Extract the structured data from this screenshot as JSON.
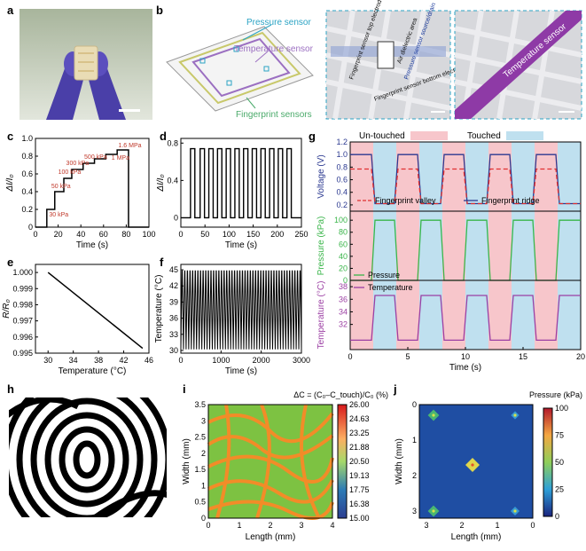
{
  "panels": {
    "a": "a",
    "b": "b",
    "c": "c",
    "d": "d",
    "e": "e",
    "f": "f",
    "g": "g",
    "h": "h",
    "i": "i",
    "j": "j"
  },
  "panel_b": {
    "pressure_sensor": "Pressure sensor",
    "temperature_sensor": "Temperature sensor",
    "fingerprint_sensors": "Fingerprint sensors",
    "fp_top_electrode": "Fingerprint sensor top electrode",
    "air_dielectric": "Air dielectric area",
    "pressure_source_drain": "Pressure sensor source/drain",
    "fp_bottom_electrode": "Fingerprint sensor bottom electrode",
    "temp_sensor_zoom": "Temperature sensor"
  },
  "chart_data": [
    {
      "id": "c",
      "type": "line",
      "xlabel": "Time (s)",
      "ylabel": "ΔI/I₀",
      "xlim": [
        0,
        100
      ],
      "ylim": [
        0,
        1.0
      ],
      "xticks": [
        "0",
        "20",
        "40",
        "60",
        "80",
        "100"
      ],
      "yticks": [
        "0",
        "0.2",
        "0.4",
        "0.6",
        "0.8",
        "1.0"
      ],
      "x": [
        0,
        10,
        10,
        17,
        17,
        25,
        25,
        32,
        32,
        42,
        42,
        52,
        52,
        62,
        62,
        72,
        72,
        82,
        82,
        100
      ],
      "y": [
        0,
        0,
        0.2,
        0.2,
        0.4,
        0.4,
        0.55,
        0.55,
        0.65,
        0.65,
        0.72,
        0.72,
        0.77,
        0.77,
        0.82,
        0.82,
        0.87,
        0.87,
        0,
        0
      ],
      "annotations": [
        {
          "text": "30 kPa",
          "x": 12,
          "y": 0.12
        },
        {
          "text": "50 kPa",
          "x": 14,
          "y": 0.44
        },
        {
          "text": "100 kPa",
          "x": 20,
          "y": 0.6
        },
        {
          "text": "300 kPa",
          "x": 27,
          "y": 0.7
        },
        {
          "text": "500 kPa",
          "x": 43,
          "y": 0.77
        },
        {
          "text": "1 MPa",
          "x": 67,
          "y": 0.76
        },
        {
          "text": "1.6 MPa",
          "x": 73,
          "y": 0.9
        }
      ]
    },
    {
      "id": "d",
      "type": "line",
      "xlabel": "Time (s)",
      "ylabel": "ΔI/I₀",
      "xlim": [
        0,
        250
      ],
      "ylim": [
        -0.1,
        0.85
      ],
      "xticks": [
        "0",
        "50",
        "100",
        "150",
        "200",
        "250"
      ],
      "yticks": [
        "0",
        "0.4",
        "0.8"
      ],
      "pulse_starts": [
        20,
        40,
        58,
        76,
        94,
        112,
        130,
        148,
        166,
        184,
        202,
        220
      ],
      "pulse_width": 9,
      "high": 0.74,
      "low": 0
    },
    {
      "id": "e",
      "type": "line",
      "xlabel": "Temperature (°C)",
      "ylabel": "R/R₀",
      "xlim": [
        28,
        46
      ],
      "ylim": [
        0.995,
        1.0005
      ],
      "xticks": [
        "30",
        "34",
        "38",
        "42",
        "46"
      ],
      "yticks": [
        "0.995",
        "0.996",
        "0.997",
        "0.998",
        "0.999",
        "1.000"
      ],
      "x": [
        30,
        45
      ],
      "y": [
        1.0,
        0.9953
      ]
    },
    {
      "id": "f",
      "type": "line",
      "xlabel": "Time (s)",
      "ylabel": "Temperature (°C)",
      "xlim": [
        0,
        3000
      ],
      "ylim": [
        29.5,
        46
      ],
      "xticks": [
        "0",
        "1000",
        "2000",
        "3000"
      ],
      "yticks": [
        "30",
        "33",
        "36",
        "39",
        "42",
        "45"
      ],
      "cycles": 46,
      "high": 44.8,
      "low": 30.2
    },
    {
      "id": "g",
      "type": "line",
      "xlabel": "Time (s)",
      "xlim": [
        0,
        20
      ],
      "xticks": [
        "0",
        "5",
        "10",
        "15",
        "20"
      ],
      "legend_top": {
        "untouched": "Un-touched",
        "touched": "Touched"
      },
      "touched_spans": [
        [
          2,
          4
        ],
        [
          6,
          8
        ],
        [
          10,
          12
        ],
        [
          14,
          16
        ],
        [
          18,
          20
        ]
      ],
      "untouched_spans": [
        [
          0,
          2
        ],
        [
          4,
          6
        ],
        [
          8,
          10
        ],
        [
          12,
          14
        ],
        [
          16,
          18
        ]
      ],
      "colors": {
        "untouched": "#f7c6cb",
        "touched": "#bfe0ef",
        "valley": "#e03030",
        "ridge": "#2b3990",
        "pressure": "#3ab54a",
        "temperature": "#9b3fa3"
      },
      "voltage": {
        "ylabel": "Voltage (V)",
        "ylim": [
          0.1,
          1.2
        ],
        "yticks": [
          "0.2",
          "0.4",
          "0.6",
          "0.8",
          "1.0",
          "1.2"
        ],
        "valley_name": "Fingerprint valley",
        "ridge_name": "Fingerprint ridge",
        "valley_high": 0.77,
        "ridge_high": 1.0,
        "low": 0.22
      },
      "pressure": {
        "ylabel": "Pressure (kPa)",
        "ylim": [
          0,
          115
        ],
        "yticks": [
          "0",
          "20",
          "40",
          "60",
          "80",
          "100"
        ],
        "name": "Pressure",
        "high": 100,
        "low": 0
      },
      "temperature": {
        "ylabel": "Temperature (°C)",
        "ylim": [
          28,
          39
        ],
        "yticks": [
          "32",
          "34",
          "36",
          "38"
        ],
        "name": "Temperature",
        "high": 36.6,
        "low": 29.5
      }
    },
    {
      "id": "i",
      "type": "heatmap",
      "xlabel": "Length (mm)",
      "ylabel": "Width (mm)",
      "xlim": [
        0,
        4
      ],
      "ylim": [
        0,
        3.5
      ],
      "xticks": [
        "0",
        "1",
        "2",
        "3",
        "4"
      ],
      "yticks": [
        "0",
        "0.5",
        "1",
        "1.5",
        "2",
        "2.5",
        "3",
        "3.5"
      ],
      "colorbar_title": "ΔC = (C₀–C_touch)/C₀ (%)",
      "colorbar_ticks": [
        "26.00",
        "24.63",
        "23.25",
        "21.88",
        "20.50",
        "19.13",
        "17.75",
        "16.38",
        "15.00"
      ]
    },
    {
      "id": "j",
      "type": "heatmap",
      "xlabel": "Length (mm)",
      "ylabel": "Width (mm)",
      "xlim": [
        3.2,
        0
      ],
      "ylim": [
        0,
        3.2
      ],
      "xticks": [
        "3",
        "2",
        "1",
        "0"
      ],
      "yticks": [
        "0",
        "1",
        "2",
        "3"
      ],
      "colorbar_title": "Pressure (kPa)",
      "colorbar_ticks": [
        "100",
        "75",
        "50",
        "25",
        "0"
      ],
      "points": [
        {
          "x": 2.8,
          "y": 0.3,
          "value": 60
        },
        {
          "x": 0.5,
          "y": 0.3,
          "value": 15
        },
        {
          "x": 1.7,
          "y": 1.7,
          "value": 100
        },
        {
          "x": 2.8,
          "y": 3.0,
          "value": 60
        },
        {
          "x": 0.5,
          "y": 3.0,
          "value": 25
        }
      ]
    }
  ]
}
